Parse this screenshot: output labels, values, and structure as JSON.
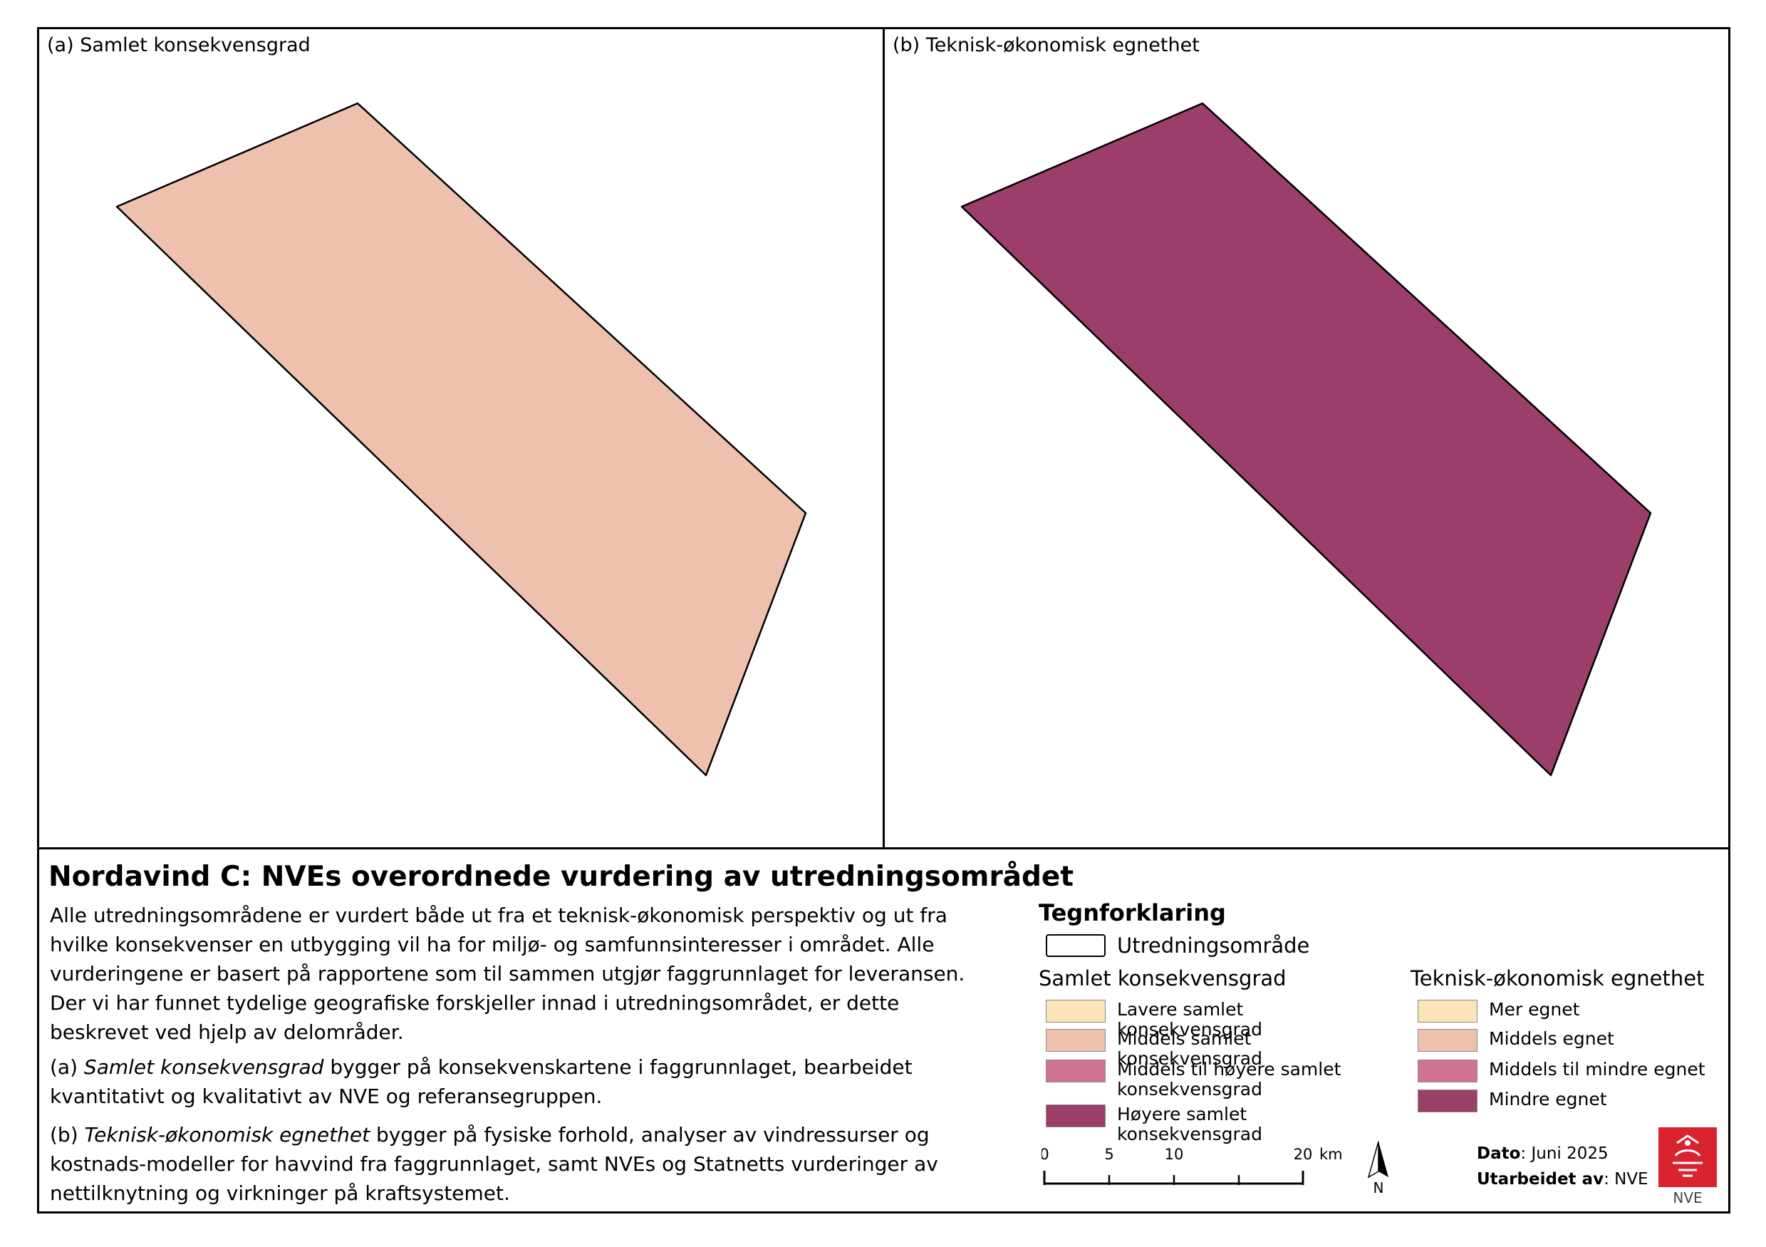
{
  "panels": {
    "a": {
      "title": "(a) Samlet konsekvensgrad",
      "fill": "#EDC1AE"
    },
    "b": {
      "title": "(b) Teknisk-økonomisk egnethet",
      "fill": "#9B3E69"
    }
  },
  "main_title": "Nordavind C: NVEs overordnede vurdering av utredningsområdet",
  "description": {
    "p1": "Alle utredningsområdene er vurdert både ut fra et teknisk-økonomisk perspektiv og ut fra hvilke konsekvenser en utbygging vil ha for miljø- og samfunnsinteresser i området. Alle vurderingene er basert på rapportene som til sammen utgjør faggrunnlaget for leveransen. Der vi har funnet tydelige geografiske forskjeller innad i utredningsområdet, er dette beskrevet ved hjelp av delområder.",
    "p2_lead": "(a)",
    "p2_term": "Samlet konsekvensgrad",
    "p2_rest": "bygger på konsekvenskartene i faggrunnlaget, bearbeidet kvantitativt og kvalitativt av NVE og referansegruppen.",
    "p3_lead": "(b)",
    "p3_term": "Teknisk-økonomisk egnethet",
    "p3_rest": "bygger på fysiske forhold, analyser av vindressurser og kostnads-modeller for havvind fra faggrunnlaget, samt NVEs og Statnetts vurderinger av nettilknytning og virkninger på kraftsystemet."
  },
  "legend": {
    "title": "Tegnforklaring",
    "outline_label": "Utredningsområde",
    "consequence_heading": "Samlet konsekvensgrad",
    "consequence_items": [
      {
        "label": "Lavere samlet konsekvensgrad",
        "color": "#FBE5B8"
      },
      {
        "label": "Middels samlet konsekvensgrad",
        "color": "#EDC1AE"
      },
      {
        "label": "Middels til høyere samlet konsekvensgrad",
        "color": "#D07390"
      },
      {
        "label": "Høyere samlet konsekvensgrad",
        "color": "#9B3E69"
      }
    ],
    "suitability_heading": "Teknisk-økonomisk egnethet",
    "suitability_items": [
      {
        "label": "Mer egnet",
        "color": "#FBE5B8"
      },
      {
        "label": "Middels egnet",
        "color": "#EDC1AE"
      },
      {
        "label": "Middels til mindre egnet",
        "color": "#D07390"
      },
      {
        "label": "Mindre egnet",
        "color": "#9B3E69"
      }
    ]
  },
  "scale": {
    "ticks": [
      "0",
      "5",
      "10",
      "20"
    ],
    "unit": "km",
    "north_label": "N"
  },
  "meta": {
    "date_label": "Dato",
    "date_value": ": Juni 2025",
    "author_label": "Utarbeidet av",
    "author_value": ": NVE"
  },
  "logo_text": "NVE",
  "logo_color": "#D9232E"
}
